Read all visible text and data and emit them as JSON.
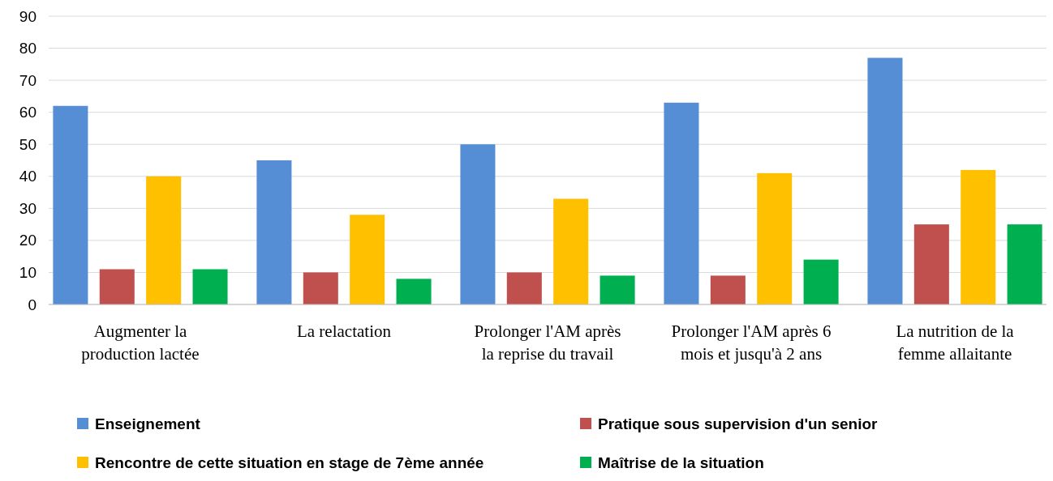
{
  "chart_data": {
    "type": "bar",
    "categories": [
      "Augmenter la production lactée",
      "La relactation",
      "Prolonger l'AM après la reprise du travail",
      "Prolonger l'AM après 6 mois et jusqu'à 2 ans",
      "La nutrition de la femme allaitante"
    ],
    "series": [
      {
        "name": "Enseignement",
        "color": "#558ed5",
        "values": [
          62,
          45,
          50,
          63,
          77
        ]
      },
      {
        "name": "Pratique sous supervision d'un senior",
        "color": "#c0504d",
        "values": [
          11,
          10,
          10,
          9,
          25
        ]
      },
      {
        "name": "Rencontre de cette situation en stage de 7ème année",
        "color": "#ffc000",
        "values": [
          40,
          28,
          33,
          41,
          42
        ]
      },
      {
        "name": "Maîtrise de la situation",
        "color": "#00b050",
        "values": [
          11,
          8,
          9,
          14,
          25
        ]
      }
    ],
    "ylim": [
      0,
      90
    ],
    "yticks": [
      0,
      10,
      20,
      30,
      40,
      50,
      60,
      70,
      80,
      90
    ],
    "grid": "y",
    "legend": "bottom"
  }
}
